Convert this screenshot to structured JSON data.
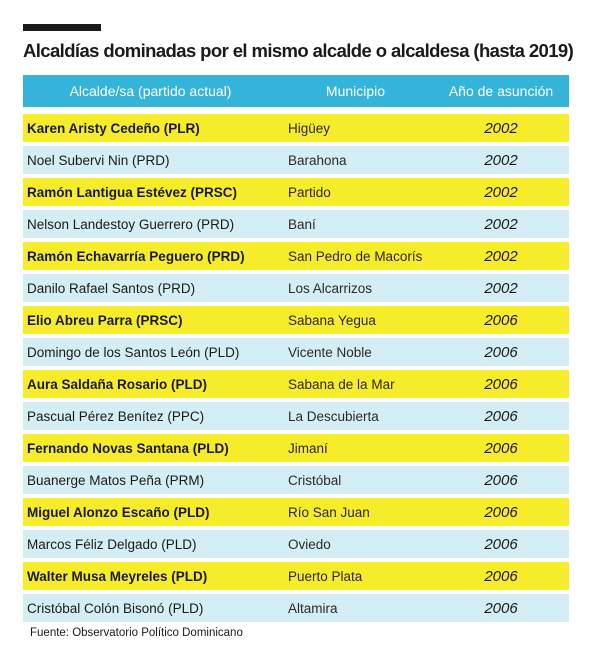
{
  "title": "Alcaldías dominadas por el mismo alcalde o alcaldesa (hasta 2019)",
  "columns": {
    "mayor": "Alcalde/sa (partido actual)",
    "municipality": "Municipio",
    "year": "Año de asunción"
  },
  "rows": [
    {
      "mayor": "Karen Aristy Cedeño (PLR)",
      "municipality": "Higüey",
      "year": "2002"
    },
    {
      "mayor": "Noel Subervi Nin (PRD)",
      "municipality": "Barahona",
      "year": "2002"
    },
    {
      "mayor": "Ramón Lantigua Estévez (PRSC)",
      "municipality": "Partido",
      "year": "2002"
    },
    {
      "mayor": "Nelson Landestoy Guerrero (PRD)",
      "municipality": "Baní",
      "year": "2002"
    },
    {
      "mayor": "Ramón Echavarría Peguero (PRD)",
      "municipality": "San Pedro de Macorís",
      "year": "2002"
    },
    {
      "mayor": "Danilo Rafael Santos (PRD)",
      "municipality": "Los Alcarrizos",
      "year": "2002"
    },
    {
      "mayor": "Elio Abreu Parra (PRSC)",
      "municipality": "Sabana Yegua",
      "year": "2006"
    },
    {
      "mayor": "Domingo de los Santos León (PLD)",
      "municipality": "Vicente Noble",
      "year": "2006"
    },
    {
      "mayor": "Aura Saldaña Rosario (PLD)",
      "municipality": "Sabana de la Mar",
      "year": "2006"
    },
    {
      "mayor": "Pascual Pérez Benítez (PPC)",
      "municipality": "La Descubierta",
      "year": "2006"
    },
    {
      "mayor": "Fernando Novas Santana (PLD)",
      "municipality": "Jimaní",
      "year": "2006"
    },
    {
      "mayor": "Buanerge Matos Peña (PRM)",
      "municipality": "Cristóbal",
      "year": "2006"
    },
    {
      "mayor": "Miguel Alonzo Escaño (PLD)",
      "municipality": "Río San Juan",
      "year": "2006"
    },
    {
      "mayor": "Marcos Féliz Delgado (PLD)",
      "municipality": "Oviedo",
      "year": "2006"
    },
    {
      "mayor": "Walter Musa Meyreles (PLD)",
      "municipality": "Puerto Plata",
      "year": "2006"
    },
    {
      "mayor": "Cristóbal Colón Bisonó (PLD)",
      "municipality": "Altamira",
      "year": "2006"
    }
  ],
  "source": "Fuente: Observatorio Político Dominicano",
  "colors": {
    "header": "#34b4d9",
    "row_highlight": "#f7ec2a",
    "row_alt": "#d5edf5"
  }
}
